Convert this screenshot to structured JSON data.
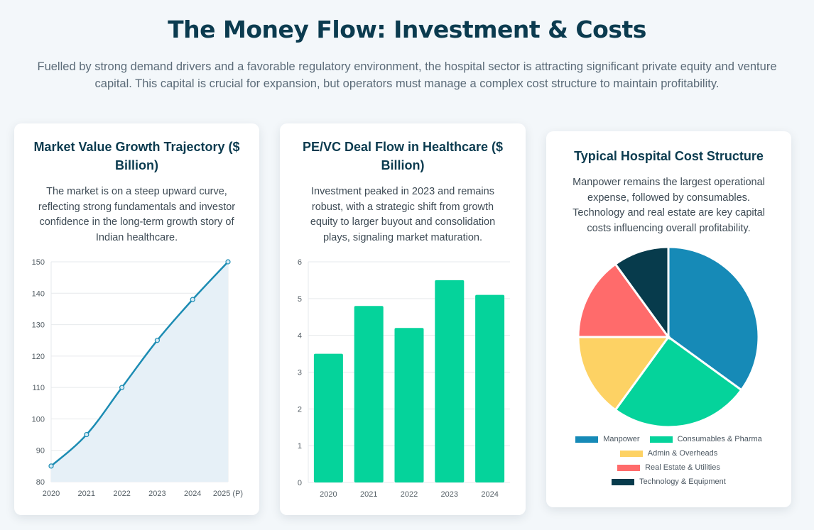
{
  "header": {
    "title": "The Money Flow: Investment & Costs",
    "subtitle": "Fuelled by strong demand drivers and a favorable regulatory environment, the hospital sector is attracting significant private equity and venture capital. This capital is crucial for expansion, but operators must manage a complex cost structure to maintain profitability."
  },
  "cards": [
    {
      "title": "Market Value Growth Trajectory ($ Billion)",
      "description": "The market is on a steep upward curve, reflecting strong fundamentals and investor confidence in the long-term growth story of Indian healthcare."
    },
    {
      "title": "PE/VC Deal Flow in Healthcare ($ Billion)",
      "description": "Investment peaked in 2023 and remains robust, with a strategic shift from growth equity to larger buyout and consolidation plays, signaling market maturation."
    },
    {
      "title": "Typical Hospital Cost Structure",
      "description": "Manpower remains the largest operational expense, followed by consumables. Technology and real estate are key capital costs influencing overall profitability."
    }
  ],
  "chart_data": [
    {
      "type": "area",
      "title": "Market Value Growth Trajectory ($ Billion)",
      "categories": [
        "2020",
        "2021",
        "2022",
        "2023",
        "2024",
        "2025 (P)"
      ],
      "values": [
        85,
        95,
        110,
        125,
        138,
        150
      ],
      "ylim": [
        80,
        150
      ],
      "yticks": [
        80,
        90,
        100,
        110,
        120,
        130,
        140,
        150
      ],
      "grid": true,
      "color": "#1c8cb3",
      "fill": "#e6f0f7"
    },
    {
      "type": "bar",
      "title": "PE/VC Deal Flow in Healthcare ($ Billion)",
      "categories": [
        "2020",
        "2021",
        "2022",
        "2023",
        "2024"
      ],
      "values": [
        3.5,
        4.8,
        4.2,
        5.5,
        5.1
      ],
      "ylim": [
        0,
        6
      ],
      "yticks": [
        0,
        1,
        2,
        3,
        4,
        5,
        6
      ],
      "grid": true,
      "color": "#05d39b"
    },
    {
      "type": "pie",
      "title": "Typical Hospital Cost Structure",
      "labels": [
        "Manpower",
        "Consumables & Pharma",
        "Admin & Overheads",
        "Real Estate & Utilities",
        "Technology & Equipment"
      ],
      "values": [
        35,
        25,
        15,
        15,
        10
      ],
      "colors": [
        "#168ab7",
        "#05d39b",
        "#fdd264",
        "#ff6b6b",
        "#073b4c"
      ],
      "legend": "bottom"
    }
  ]
}
